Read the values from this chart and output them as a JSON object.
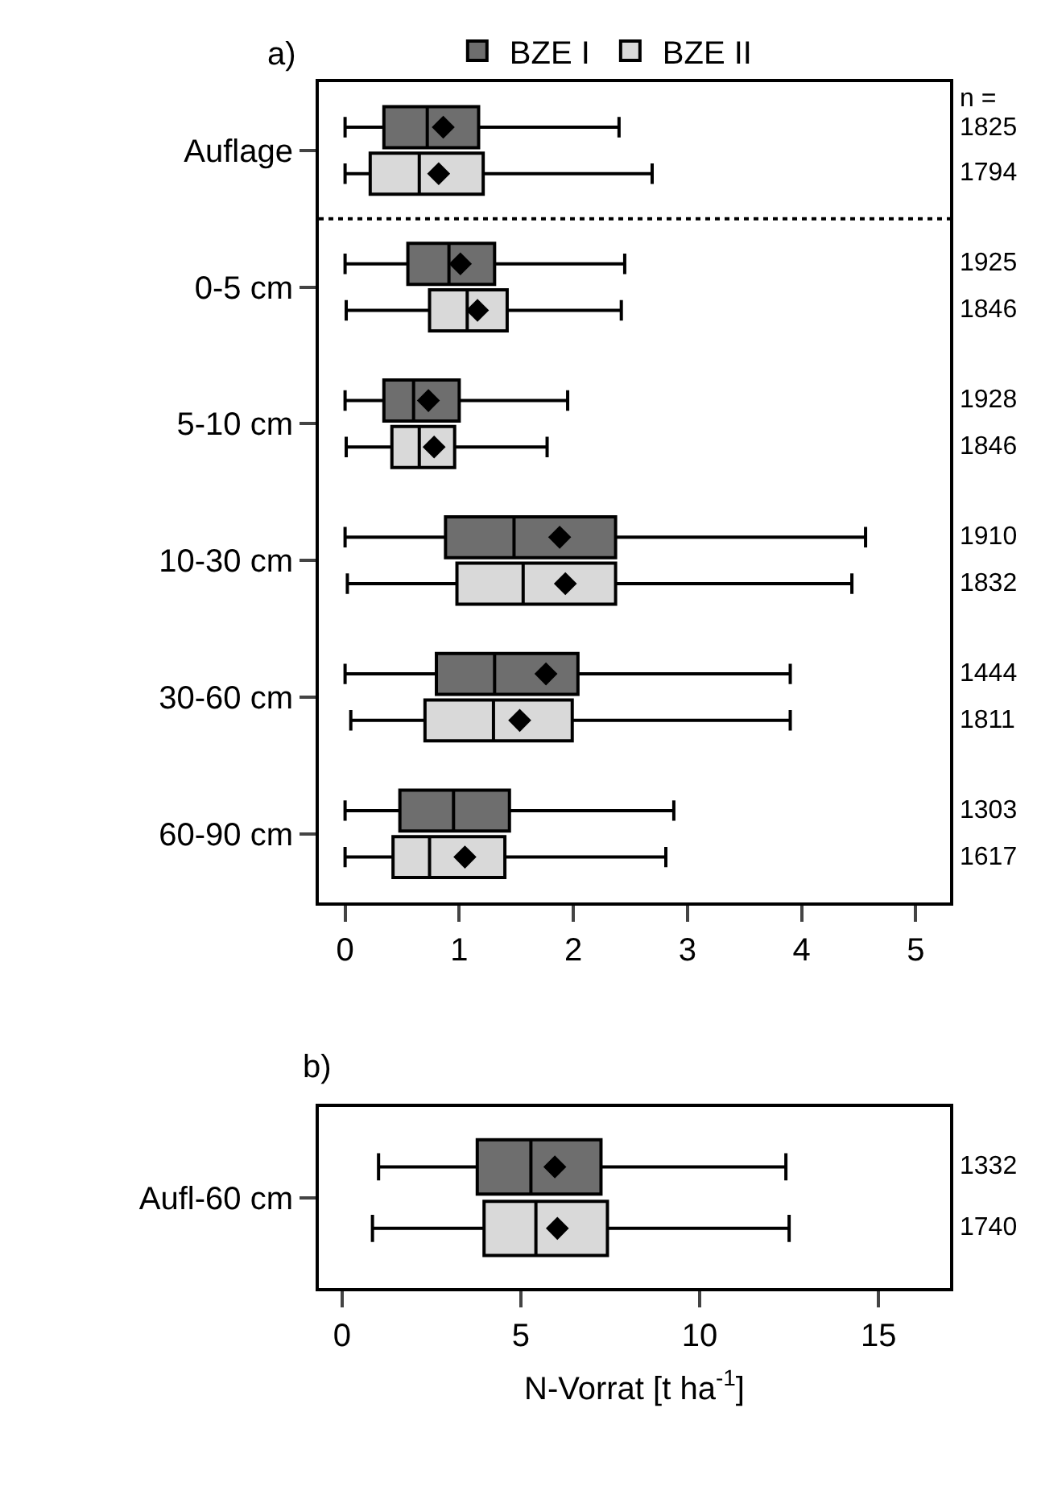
{
  "chart_data": [
    {
      "type": "box",
      "title": "a)",
      "orientation": "horizontal",
      "legend": "top",
      "marker": "diamond",
      "categories": [
        "Auflage",
        "0-5 cm",
        "5-10 cm",
        "10-30 cm",
        "30-60 cm",
        "60-90 cm"
      ],
      "xlim": [
        -0.23,
        5.3
      ],
      "xticks": [
        0,
        1,
        2,
        3,
        4,
        5
      ],
      "annotations": [
        "n ="
      ],
      "series": [
        {
          "name": "BZE I",
          "color": "#6e6e6e",
          "value_labels": [
            "1825",
            "1925",
            "1928",
            "1910",
            "1444",
            "1303"
          ],
          "boxes": [
            {
              "low": 0,
              "q1": 0.34,
              "median": 0.72,
              "q3": 1.17,
              "high": 2.4,
              "mean": 0.86
            },
            {
              "low": 0,
              "q1": 0.55,
              "median": 0.91,
              "q3": 1.31,
              "high": 2.45,
              "mean": 1.01
            },
            {
              "low": 0,
              "q1": 0.34,
              "median": 0.6,
              "q3": 1.0,
              "high": 1.95,
              "mean": 0.73
            },
            {
              "low": 0,
              "q1": 0.88,
              "median": 1.48,
              "q3": 2.37,
              "high": 4.56,
              "mean": 1.88
            },
            {
              "low": 0,
              "q1": 0.8,
              "median": 1.31,
              "q3": 2.04,
              "high": 3.9,
              "mean": 1.76
            },
            {
              "low": 0,
              "q1": 0.48,
              "median": 0.95,
              "q3": 1.44,
              "high": 2.88
            }
          ]
        },
        {
          "name": "BZE II",
          "color": "#d9d9d9",
          "value_labels": [
            "1794",
            "1846",
            "1846",
            "1832",
            "1811",
            "1617"
          ],
          "boxes": [
            {
              "low": 0,
              "q1": 0.22,
              "median": 0.65,
              "q3": 1.21,
              "high": 2.69,
              "mean": 0.82
            },
            {
              "low": 0.01,
              "q1": 0.74,
              "median": 1.07,
              "q3": 1.42,
              "high": 2.42,
              "mean": 1.16
            },
            {
              "low": 0.01,
              "q1": 0.41,
              "median": 0.65,
              "q3": 0.96,
              "high": 1.77,
              "mean": 0.78
            },
            {
              "low": 0.02,
              "q1": 0.98,
              "median": 1.56,
              "q3": 2.37,
              "high": 4.44,
              "mean": 1.93
            },
            {
              "low": 0.05,
              "q1": 0.7,
              "median": 1.3,
              "q3": 1.99,
              "high": 3.9,
              "mean": 1.53
            },
            {
              "low": 0,
              "q1": 0.42,
              "median": 0.74,
              "q3": 1.4,
              "high": 2.81,
              "mean": 1.05
            }
          ]
        }
      ]
    },
    {
      "type": "box",
      "title": "b)",
      "orientation": "horizontal",
      "marker": "diamond",
      "categories": [
        "Aufl-60 cm"
      ],
      "xlabel": "N-Vorrat [t ha$^{-1}$]",
      "xlim": [
        -0.65,
        17
      ],
      "xticks": [
        0,
        5,
        10,
        15
      ],
      "series": [
        {
          "color": "#6e6e6e",
          "value_labels": [
            "1332"
          ],
          "boxes": [
            {
              "low": 1.02,
              "q1": 3.78,
              "median": 5.28,
              "q3": 7.24,
              "high": 12.41,
              "mean": 5.95
            }
          ]
        },
        {
          "color": "#d9d9d9",
          "value_labels": [
            "1740"
          ],
          "boxes": [
            {
              "low": 0.85,
              "q1": 3.97,
              "median": 5.42,
              "q3": 7.42,
              "high": 12.5,
              "mean": 6.02
            }
          ]
        }
      ]
    }
  ]
}
